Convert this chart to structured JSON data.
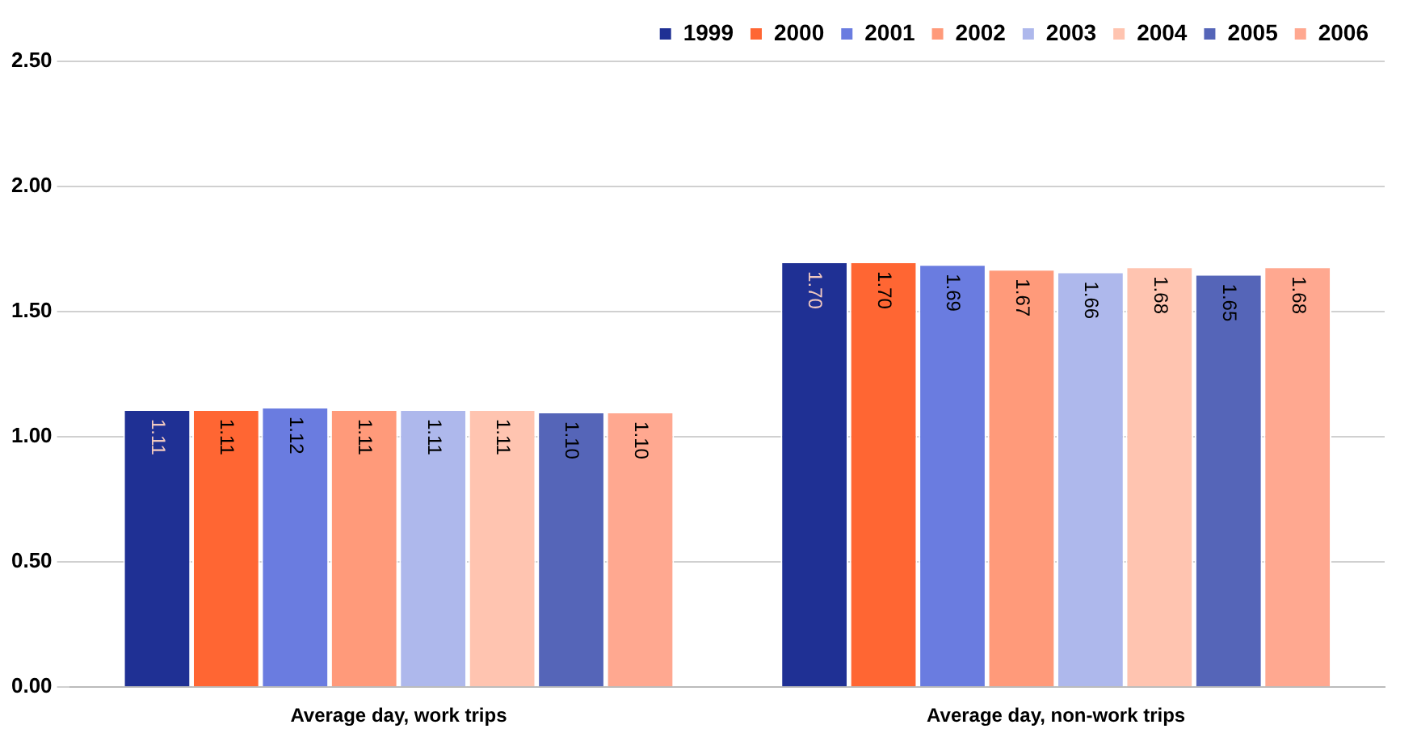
{
  "chart_data": {
    "type": "bar",
    "categories": [
      "Average day, work trips",
      "Average day, non-work trips"
    ],
    "series": [
      {
        "name": "1999",
        "color": "#1f3094",
        "values": [
          1.11,
          1.7
        ],
        "value_labels": [
          "1.11",
          "1.70"
        ]
      },
      {
        "name": "2000",
        "color": "#ff6633",
        "values": [
          1.11,
          1.7
        ],
        "value_labels": [
          "1.11",
          "1.70"
        ]
      },
      {
        "name": "2001",
        "color": "#6a7ce0",
        "values": [
          1.12,
          1.69
        ],
        "value_labels": [
          "1.12",
          "1.69"
        ]
      },
      {
        "name": "2002",
        "color": "#ff9a7a",
        "values": [
          1.11,
          1.67
        ],
        "value_labels": [
          "1.11",
          "1.67"
        ]
      },
      {
        "name": "2003",
        "color": "#aeb8ec",
        "values": [
          1.11,
          1.66
        ],
        "value_labels": [
          "1.11",
          "1.66"
        ]
      },
      {
        "name": "2004",
        "color": "#ffc4b0",
        "values": [
          1.11,
          1.68
        ],
        "value_labels": [
          "1.11",
          "1.68"
        ]
      },
      {
        "name": "2005",
        "color": "#5565b8",
        "values": [
          1.1,
          1.65
        ],
        "value_labels": [
          "1.10",
          "1.65"
        ]
      },
      {
        "name": "2006",
        "color": "#ffa890",
        "values": [
          1.1,
          1.68
        ],
        "value_labels": [
          "1.10",
          "1.68"
        ]
      }
    ],
    "ylim": [
      0,
      2.5
    ],
    "yticks": [
      {
        "value": 0,
        "label": "0.00"
      },
      {
        "value": 0.5,
        "label": "0.50"
      },
      {
        "value": 1,
        "label": "1.00"
      },
      {
        "value": 1.5,
        "label": "1.50"
      },
      {
        "value": 2,
        "label": "2.00"
      },
      {
        "value": 2.5,
        "label": "2.50"
      }
    ],
    "grid": "y",
    "legend": "top right"
  }
}
